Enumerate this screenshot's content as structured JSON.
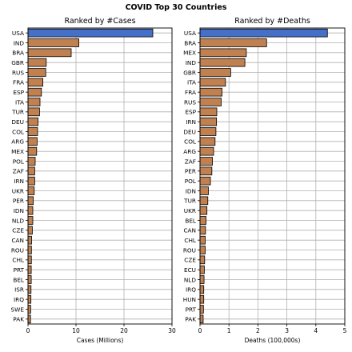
{
  "figure": {
    "title": "COVID Top 30 Countries"
  },
  "colors": {
    "highlight": "#4470c8",
    "bar": "#c0804f",
    "edge": "#000000",
    "grid": "#b0b0b0"
  },
  "chart_data": [
    {
      "type": "bar",
      "orientation": "horizontal",
      "title": "Ranked by #Cases",
      "xlabel": "Cases (Millions)",
      "ylabel": "",
      "xlim": [
        0,
        30
      ],
      "xticks": [
        0,
        10,
        20,
        30
      ],
      "grid": true,
      "highlight_first": true,
      "categories": [
        "USA",
        "IND",
        "BRA",
        "GBR",
        "RUS",
        "FRA",
        "ESP",
        "ITA",
        "TUR",
        "DEU",
        "COL",
        "ARG",
        "MEX",
        "POL",
        "ZAF",
        "IRN",
        "UKR",
        "PER",
        "IDN",
        "NLD",
        "CZE",
        "CAN",
        "ROU",
        "CHL",
        "PRT",
        "BEL",
        "ISR",
        "IRQ",
        "SWE",
        "PAK"
      ],
      "values": [
        26.0,
        10.6,
        9.0,
        3.8,
        3.7,
        3.1,
        2.8,
        2.5,
        2.4,
        2.1,
        2.0,
        1.9,
        1.8,
        1.5,
        1.4,
        1.4,
        1.3,
        1.1,
        1.0,
        1.0,
        0.9,
        0.75,
        0.72,
        0.71,
        0.68,
        0.68,
        0.63,
        0.61,
        0.56,
        0.53
      ]
    },
    {
      "type": "bar",
      "orientation": "horizontal",
      "title": "Ranked by #Deaths",
      "xlabel": "Deaths (100,000s)",
      "ylabel": "",
      "xlim": [
        0,
        5
      ],
      "xticks": [
        0,
        1,
        2,
        3,
        4,
        5
      ],
      "grid": true,
      "highlight_first": true,
      "categories": [
        "USA",
        "BRA",
        "MEX",
        "IND",
        "GBR",
        "ITA",
        "FRA",
        "RUS",
        "ESP",
        "IRN",
        "DEU",
        "COL",
        "ARG",
        "ZAF",
        "PER",
        "POL",
        "IDN",
        "TUR",
        "UKR",
        "BEL",
        "CAN",
        "CHL",
        "ROU",
        "CZE",
        "ECU",
        "NLD",
        "IRQ",
        "HUN",
        "PRT",
        "PAK"
      ],
      "values": [
        4.4,
        2.3,
        1.6,
        1.55,
        1.06,
        0.88,
        0.76,
        0.73,
        0.58,
        0.57,
        0.55,
        0.52,
        0.47,
        0.43,
        0.41,
        0.36,
        0.29,
        0.27,
        0.24,
        0.21,
        0.19,
        0.18,
        0.18,
        0.16,
        0.15,
        0.14,
        0.13,
        0.13,
        0.12,
        0.11
      ]
    }
  ]
}
